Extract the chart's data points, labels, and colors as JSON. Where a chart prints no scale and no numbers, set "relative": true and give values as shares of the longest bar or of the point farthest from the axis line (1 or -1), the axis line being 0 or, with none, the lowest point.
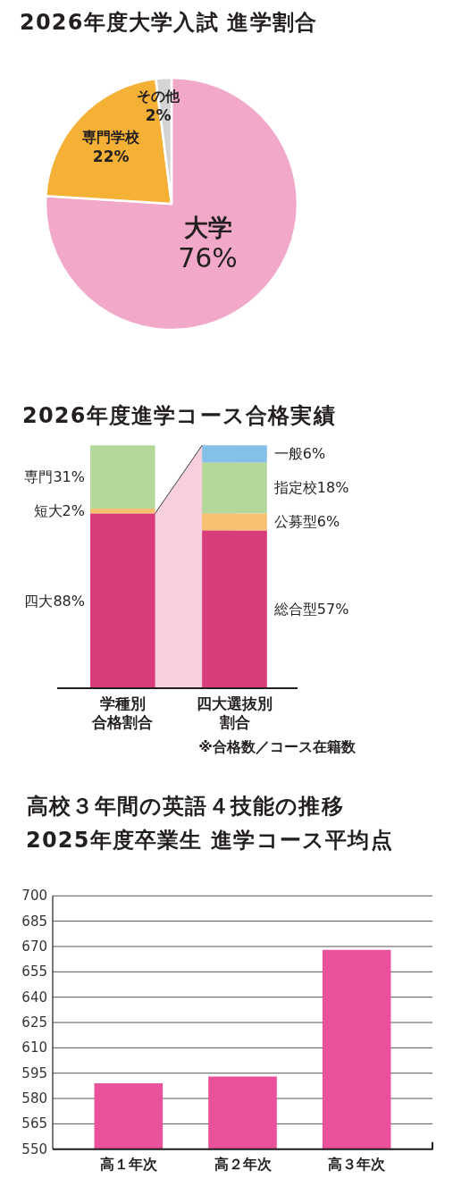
{
  "chart_data": [
    {
      "type": "pie",
      "title": "2026年度大学入試 進学割合",
      "categories": [
        "大学",
        "専門学校",
        "その他"
      ],
      "values": [
        76,
        22,
        2
      ],
      "colors": [
        "#f2a9c9",
        "#f5b036",
        "#d4d4d4"
      ],
      "value_labels": [
        "76%",
        "22%",
        "2%"
      ]
    },
    {
      "type": "bar",
      "title": "2026年度進学コース合格実績",
      "stacked": true,
      "relative": true,
      "categories": [
        "学種別合格割合",
        "四大選抜別割合"
      ],
      "series": [
        {
          "name": "四大88%",
          "color": "#d93c7b",
          "values": [
            0.72,
            null
          ]
        },
        {
          "name": "短大2%",
          "color": "#f7c171",
          "values": [
            0.02,
            null
          ]
        },
        {
          "name": "専門31%",
          "color": "#b4d89a",
          "values": [
            0.26,
            null
          ]
        },
        {
          "name": "総合型57%",
          "color": "#d93c7b",
          "values": [
            null,
            0.65
          ]
        },
        {
          "name": "公募型6%",
          "color": "#f7c171",
          "values": [
            null,
            0.07
          ]
        },
        {
          "name": "指定校18%",
          "color": "#b4d89a",
          "values": [
            null,
            0.21
          ]
        },
        {
          "name": "一般6%",
          "color": "#85c0e8",
          "values": [
            null,
            0.07
          ]
        }
      ],
      "bands": [
        {
          "axis": "x",
          "from": "学種別合格割合",
          "to": "四大選抜別割合",
          "color": "#f8cfdc"
        }
      ],
      "annotations": [
        "※合格数／コース在籍数"
      ]
    },
    {
      "type": "bar",
      "title": "高校３年間の英語４技能の推移",
      "subtitle": "2025年度卒業生 進学コース平均点",
      "categories": [
        "高１年次",
        "高２年次",
        "高３年次"
      ],
      "values": [
        589,
        593,
        668
      ],
      "color": "#e9519a",
      "ylim": [
        550,
        700
      ],
      "yticks": [
        550,
        565,
        580,
        595,
        610,
        625,
        640,
        655,
        670,
        685,
        700
      ],
      "grid": "y"
    }
  ]
}
